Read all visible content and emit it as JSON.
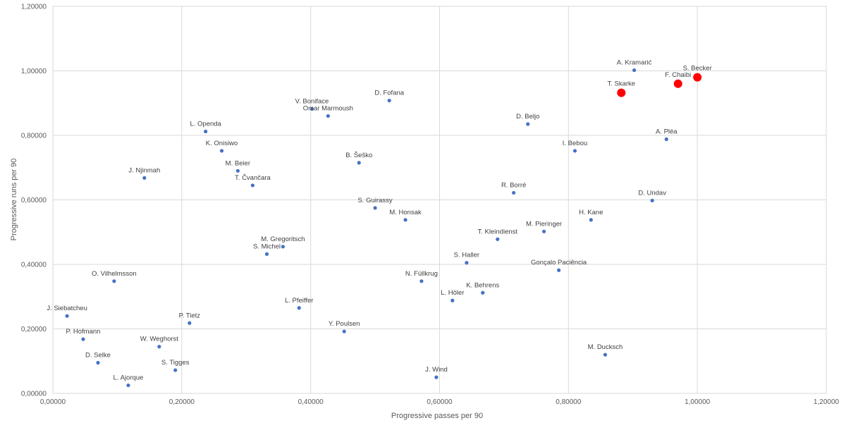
{
  "chart_data": {
    "type": "scatter",
    "title": "",
    "xlabel": "Progressive passes per 90",
    "ylabel": "Progressive runs per 90",
    "xlim": [
      0,
      1.2
    ],
    "ylim": [
      0,
      1.2
    ],
    "x_ticks": [
      "0,00000",
      "0,20000",
      "0,40000",
      "0,60000",
      "0,80000",
      "1,00000",
      "1,20000"
    ],
    "y_ticks": [
      "0,00000",
      "0,20000",
      "0,40000",
      "0,60000",
      "0,80000",
      "1,00000",
      "1,20000"
    ],
    "grid": true,
    "colors": {
      "default": "#4472c4",
      "highlight": "#ff0000"
    },
    "points": [
      {
        "label": "A. Kramarić",
        "x": 0.902,
        "y": 1.002,
        "highlight": false
      },
      {
        "label": "S. Becker",
        "x": 1.0,
        "y": 0.98,
        "highlight": true
      },
      {
        "label": "F. Chaibi",
        "x": 0.97,
        "y": 0.96,
        "highlight": true
      },
      {
        "label": "T. Skarke",
        "x": 0.882,
        "y": 0.932,
        "highlight": true
      },
      {
        "label": "D. Fofana",
        "x": 0.522,
        "y": 0.908,
        "highlight": false
      },
      {
        "label": "V. Boniface",
        "x": 0.402,
        "y": 0.882,
        "highlight": false
      },
      {
        "label": "Omar Marmoush",
        "x": 0.427,
        "y": 0.86,
        "highlight": false
      },
      {
        "label": "D. Beljo",
        "x": 0.737,
        "y": 0.835,
        "highlight": false
      },
      {
        "label": "L. Openda",
        "x": 0.237,
        "y": 0.812,
        "highlight": false
      },
      {
        "label": "A. Pléa",
        "x": 0.952,
        "y": 0.788,
        "highlight": false
      },
      {
        "label": "K. Onisiwo",
        "x": 0.262,
        "y": 0.752,
        "highlight": false
      },
      {
        "label": "I. Bebou",
        "x": 0.81,
        "y": 0.752,
        "highlight": false
      },
      {
        "label": "B. Šeško",
        "x": 0.475,
        "y": 0.715,
        "highlight": false
      },
      {
        "label": "M. Beier",
        "x": 0.287,
        "y": 0.69,
        "highlight": false
      },
      {
        "label": "J. Njinmah",
        "x": 0.142,
        "y": 0.668,
        "highlight": false
      },
      {
        "label": "T. Čvančara",
        "x": 0.31,
        "y": 0.645,
        "highlight": false
      },
      {
        "label": "R. Borré",
        "x": 0.715,
        "y": 0.622,
        "highlight": false
      },
      {
        "label": "D. Undav",
        "x": 0.93,
        "y": 0.598,
        "highlight": false
      },
      {
        "label": "S. Guirassy",
        "x": 0.5,
        "y": 0.575,
        "highlight": false
      },
      {
        "label": "M. Honsak",
        "x": 0.547,
        "y": 0.538,
        "highlight": false
      },
      {
        "label": "H. Kane",
        "x": 0.835,
        "y": 0.538,
        "highlight": false
      },
      {
        "label": "M. Pieringer",
        "x": 0.762,
        "y": 0.502,
        "highlight": false
      },
      {
        "label": "T. Kleindienst",
        "x": 0.69,
        "y": 0.478,
        "highlight": false
      },
      {
        "label": "M. Gregoritsch",
        "x": 0.357,
        "y": 0.455,
        "highlight": false
      },
      {
        "label": "S. Michel",
        "x": 0.332,
        "y": 0.432,
        "highlight": false
      },
      {
        "label": "S. Haller",
        "x": 0.642,
        "y": 0.405,
        "highlight": false
      },
      {
        "label": "Gonçalo Paciência",
        "x": 0.785,
        "y": 0.382,
        "highlight": false
      },
      {
        "label": "O. Vilhelmsson",
        "x": 0.095,
        "y": 0.348,
        "highlight": false
      },
      {
        "label": "N. Füllkrug",
        "x": 0.572,
        "y": 0.348,
        "highlight": false
      },
      {
        "label": "K. Behrens",
        "x": 0.667,
        "y": 0.312,
        "highlight": false
      },
      {
        "label": "L. Höler",
        "x": 0.62,
        "y": 0.288,
        "highlight": false
      },
      {
        "label": "L. Pfeiffer",
        "x": 0.382,
        "y": 0.265,
        "highlight": false
      },
      {
        "label": "J. Siebatcheu",
        "x": 0.022,
        "y": 0.24,
        "highlight": false
      },
      {
        "label": "P. Tietz",
        "x": 0.212,
        "y": 0.218,
        "highlight": false
      },
      {
        "label": "Y. Poulsen",
        "x": 0.452,
        "y": 0.192,
        "highlight": false
      },
      {
        "label": "P. Hofmann",
        "x": 0.047,
        "y": 0.168,
        "highlight": false
      },
      {
        "label": "W. Weghorst",
        "x": 0.165,
        "y": 0.145,
        "highlight": false
      },
      {
        "label": "M. Ducksch",
        "x": 0.857,
        "y": 0.12,
        "highlight": false
      },
      {
        "label": "D. Selke",
        "x": 0.07,
        "y": 0.095,
        "highlight": false
      },
      {
        "label": "S. Tigges",
        "x": 0.19,
        "y": 0.072,
        "highlight": false
      },
      {
        "label": "J. Wind",
        "x": 0.595,
        "y": 0.05,
        "highlight": false
      },
      {
        "label": "L. Ajorque",
        "x": 0.117,
        "y": 0.025,
        "highlight": false
      }
    ]
  }
}
